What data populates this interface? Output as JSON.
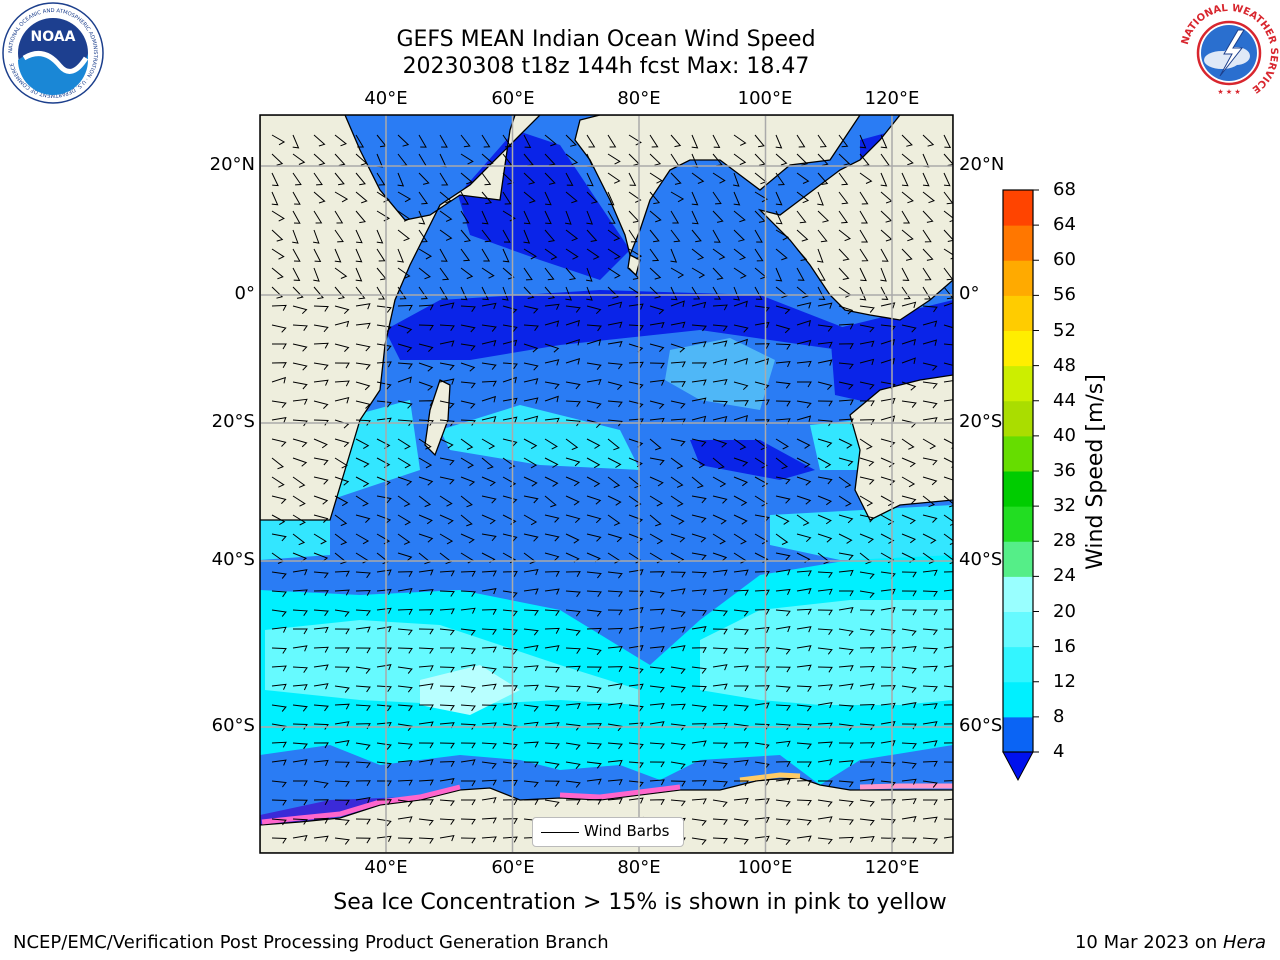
{
  "header": {
    "title_line1": "GEFS MEAN Indian Ocean Wind Speed",
    "title_line2": "20230308 t18z 144h fcst   Max: 18.47"
  },
  "logos": {
    "noaa_text": "NOAA",
    "noaa_ring_text": "NATIONAL OCEANIC AND ATMOSPHERIC ADMINISTRATION · U.S. DEPARTMENT OF COMMERCE",
    "nws_ring_text": "NATIONAL WEATHER SERVICE"
  },
  "map": {
    "lon_labels": [
      "40°E",
      "60°E",
      "80°E",
      "100°E",
      "120°E"
    ],
    "lat_labels_left": [
      "20°N",
      "0°",
      "20°S",
      "40°S",
      "60°S"
    ],
    "lat_labels_right": [
      "20°N",
      "0°",
      "20°S",
      "40°S",
      "60°S"
    ],
    "lon_values": [
      40,
      60,
      80,
      100,
      120
    ],
    "lat_values": [
      20,
      0,
      -20,
      -40,
      -60
    ],
    "legend_label": "Wind Barbs",
    "land_color": "#eeeedd",
    "ocean_base_color": "#2a7cf4"
  },
  "colorbar": {
    "title": "Wind Speed [m/s]",
    "ticks": [
      "68",
      "64",
      "60",
      "56",
      "52",
      "48",
      "44",
      "40",
      "36",
      "32",
      "28",
      "24",
      "20",
      "16",
      "12",
      "8",
      "4"
    ],
    "levels": [
      4,
      8,
      12,
      16,
      20,
      24,
      28,
      32,
      36,
      40,
      44,
      48,
      52,
      56,
      60,
      64,
      68
    ],
    "colors": [
      "#0a64f5",
      "#00f0ff",
      "#33f5ff",
      "#66faff",
      "#99ffff",
      "#55ee88",
      "#22dd22",
      "#00cc00",
      "#66dd00",
      "#aadd00",
      "#ccee00",
      "#ffee00",
      "#ffcc00",
      "#ffaa00",
      "#ff7700",
      "#ff4400",
      "#ff0000"
    ],
    "under_color": "#0011ee"
  },
  "notes": {
    "sea_ice": "Sea Ice Concentration > 15% is shown in pink to yellow",
    "footer_left": "NCEP/EMC/Verification Post Processing Product Generation Branch",
    "footer_right_prefix": "10 Mar 2023 on ",
    "footer_right_host": "Hera"
  }
}
